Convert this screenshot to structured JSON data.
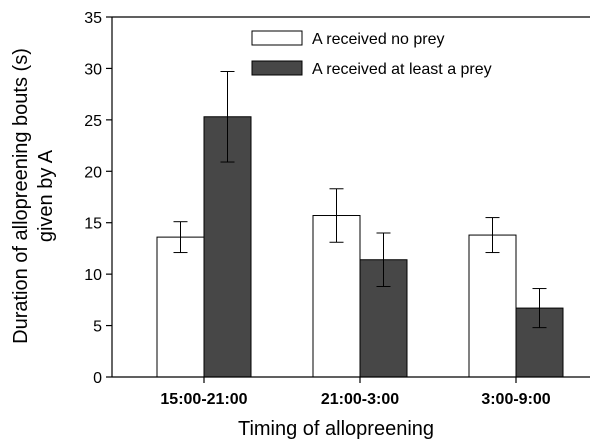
{
  "chart_data": {
    "type": "bar",
    "title": "",
    "xlabel": "Timing of allopreening",
    "ylabel_lines": [
      "Duration of allopreening bouts (s)",
      "given by A"
    ],
    "categories": [
      "15:00-21:00",
      "21:00-3:00",
      "3:00-9:00"
    ],
    "ylim": [
      0,
      35
    ],
    "yticks": [
      0,
      5,
      10,
      15,
      20,
      25,
      30,
      35
    ],
    "grid": false,
    "legend_position": "top-right",
    "series": [
      {
        "name": "A received no prey",
        "color": "#ffffff",
        "values": [
          13.6,
          15.7,
          13.8
        ],
        "error": [
          1.5,
          2.6,
          1.7
        ]
      },
      {
        "name": "A received at least a prey",
        "color": "#474747",
        "values": [
          25.3,
          11.4,
          6.7
        ],
        "error": [
          4.4,
          2.6,
          1.9
        ]
      }
    ]
  }
}
